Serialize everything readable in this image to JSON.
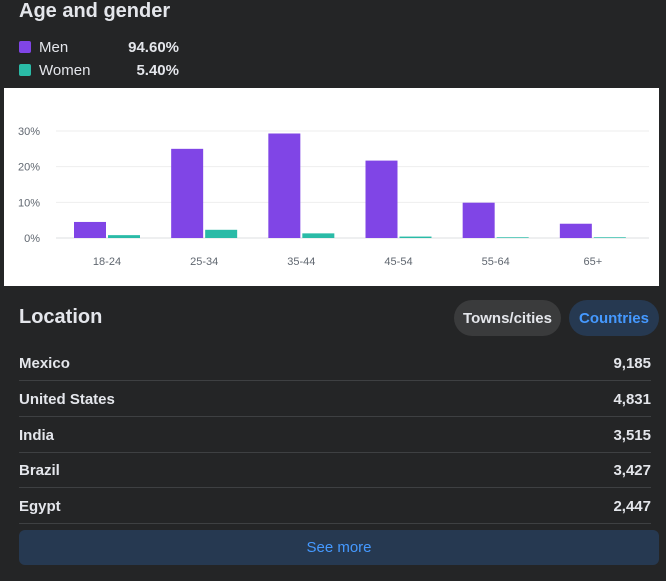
{
  "age_gender": {
    "title": "Age and gender",
    "legend": [
      {
        "name": "Men",
        "value": "94.60%",
        "color": "#8045e6"
      },
      {
        "name": "Women",
        "value": "5.40%",
        "color": "#2abba7"
      }
    ]
  },
  "chart_data": {
    "type": "bar",
    "categories": [
      "18-24",
      "25-34",
      "35-44",
      "45-54",
      "55-64",
      "65+"
    ],
    "series": [
      {
        "name": "Men",
        "values": [
          4.5,
          25,
          29.3,
          21.7,
          9.9,
          4
        ],
        "color": "#8045e6"
      },
      {
        "name": "Women",
        "values": [
          0.8,
          2.3,
          1.3,
          0.4,
          0.2,
          0.2
        ],
        "color": "#2abba7"
      }
    ],
    "yticks": [
      "0%",
      "10%",
      "20%",
      "30%"
    ],
    "ylim": [
      0,
      30
    ],
    "grid": true
  },
  "location": {
    "title": "Location",
    "tabs": {
      "towns": "Towns/cities",
      "countries": "Countries"
    },
    "rows": [
      {
        "name": "Mexico",
        "value": "9,185"
      },
      {
        "name": "United States",
        "value": "4,831"
      },
      {
        "name": "India",
        "value": "3,515"
      },
      {
        "name": "Brazil",
        "value": "3,427"
      },
      {
        "name": "Egypt",
        "value": "2,447"
      }
    ],
    "see_more": "See more"
  }
}
